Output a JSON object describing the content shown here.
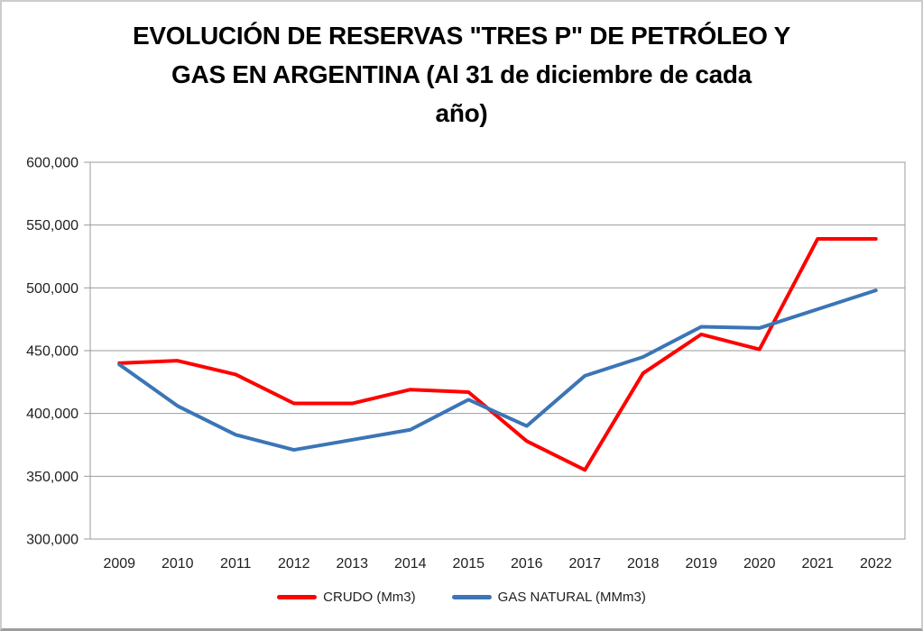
{
  "chart_data": {
    "type": "line",
    "title": "EVOLUCIÓN DE RESERVAS \"TRES P\" DE PETRÓLEO Y GAS EN ARGENTINA (Al 31 de diciembre de cada año)",
    "title_lines": [
      "EVOLUCIÓN DE RESERVAS \"TRES P\" DE PETRÓLEO Y",
      "GAS EN ARGENTINA (Al 31 de diciembre de cada",
      "año)"
    ],
    "categories": [
      "2009",
      "2010",
      "2011",
      "2012",
      "2013",
      "2014",
      "2015",
      "2016",
      "2017",
      "2018",
      "2019",
      "2020",
      "2021",
      "2022"
    ],
    "series": [
      {
        "name": "CRUDO (Mm3)",
        "color": "#FF0000",
        "values": [
          440000,
          442000,
          431000,
          408000,
          408000,
          419000,
          417000,
          378000,
          355000,
          432000,
          463000,
          451000,
          539000,
          539000
        ]
      },
      {
        "name": "GAS NATURAL (MMm3)",
        "color": "#3B75B6",
        "values": [
          439000,
          406000,
          383000,
          371000,
          379000,
          387000,
          411000,
          390000,
          430000,
          445000,
          469000,
          468000,
          483000,
          498000
        ]
      }
    ],
    "xlabel": "",
    "ylabel": "",
    "ylim": [
      300000,
      600000
    ],
    "y_tick_step": 50000,
    "y_tick_labels": [
      "300,000",
      "350,000",
      "400,000",
      "450,000",
      "500,000",
      "550,000",
      "600,000"
    ],
    "grid": true,
    "legend_position": "bottom"
  },
  "styles": {
    "grid_color": "#9b9b9b",
    "axis_text_color": "#1f1f1f",
    "line_width": 4
  }
}
